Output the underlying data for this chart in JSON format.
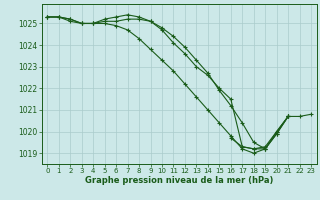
{
  "bg_color": "#cce8e8",
  "grid_color": "#aacccc",
  "line_color": "#1a5c1a",
  "marker_color": "#1a5c1a",
  "xlabel": "Graphe pression niveau de la mer (hPa)",
  "xlabel_color": "#1a5c1a",
  "tick_color": "#1a5c1a",
  "ylim": [
    1018.5,
    1025.9
  ],
  "xlim": [
    -0.5,
    23.5
  ],
  "yticks": [
    1019,
    1020,
    1021,
    1022,
    1023,
    1024,
    1025
  ],
  "xticks": [
    0,
    1,
    2,
    3,
    4,
    5,
    6,
    7,
    8,
    9,
    10,
    11,
    12,
    13,
    14,
    15,
    16,
    17,
    18,
    19,
    20,
    21,
    22,
    23
  ],
  "series": [
    [
      1025.3,
      1025.3,
      1025.2,
      1025.0,
      1025.0,
      1025.2,
      1025.3,
      1025.4,
      1025.3,
      1025.1,
      1024.7,
      1024.1,
      1023.6,
      1023.0,
      1022.6,
      1022.0,
      1021.5,
      1019.3,
      1019.2,
      1019.2,
      1020.0,
      1020.7,
      null,
      null
    ],
    [
      1025.3,
      1025.3,
      1025.2,
      1025.0,
      1025.0,
      1025.0,
      1024.9,
      1024.7,
      1024.3,
      1023.8,
      1023.3,
      1022.8,
      1022.2,
      1021.6,
      1021.0,
      1020.4,
      1019.8,
      1019.2,
      1019.0,
      1019.2,
      1019.9,
      1020.7,
      null,
      null
    ],
    [
      1025.3,
      1025.3,
      1025.1,
      1025.0,
      1025.0,
      1025.1,
      1025.1,
      1025.2,
      1025.2,
      1025.1,
      1024.8,
      1024.4,
      1023.9,
      1023.3,
      1022.7,
      1021.9,
      1021.2,
      1020.4,
      1019.5,
      1019.2,
      1019.9,
      1020.7,
      null,
      null
    ],
    [
      null,
      null,
      null,
      null,
      null,
      null,
      null,
      null,
      null,
      null,
      null,
      null,
      null,
      null,
      null,
      null,
      1019.7,
      1019.3,
      1019.2,
      1019.3,
      1020.0,
      1020.7,
      1020.7,
      1020.8
    ]
  ]
}
